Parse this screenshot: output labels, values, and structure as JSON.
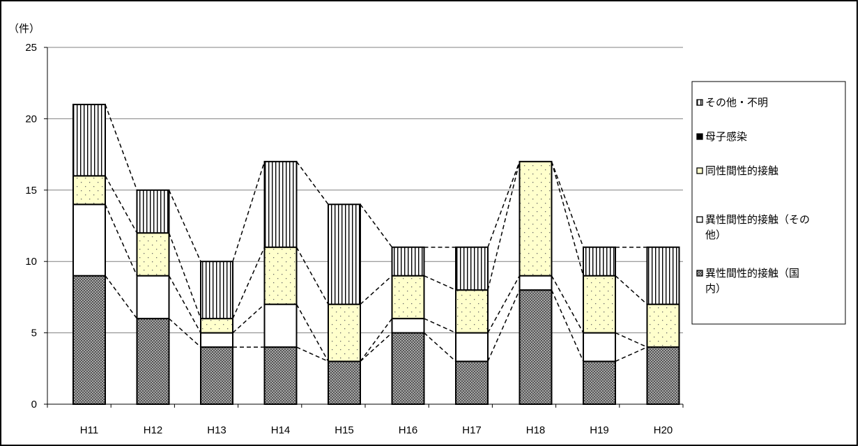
{
  "chart_data": {
    "type": "bar",
    "stacked": true,
    "ylabel": "（件）",
    "ylim": [
      0,
      25
    ],
    "yticks": [
      0,
      5,
      10,
      15,
      20,
      25
    ],
    "grid": true,
    "legend_position": "right",
    "categories": [
      "H11",
      "H12",
      "H13",
      "H14",
      "H15",
      "H16",
      "H17",
      "H18",
      "H19",
      "H20"
    ],
    "series": [
      {
        "name": "異性間性的接触（国内）",
        "pattern": "crosshatch",
        "values": [
          9,
          6,
          4,
          4,
          3,
          5,
          3,
          8,
          3,
          4
        ]
      },
      {
        "name": "異性間性的接触（その他）",
        "pattern": "blank",
        "values": [
          5,
          3,
          1,
          3,
          0,
          1,
          2,
          1,
          2,
          0
        ]
      },
      {
        "name": "同性間性的接触",
        "pattern": "dotted",
        "values": [
          2,
          3,
          1,
          4,
          4,
          3,
          3,
          8,
          4,
          3
        ]
      },
      {
        "name": "母子感染",
        "pattern": "solid",
        "values": [
          0,
          0,
          0,
          0,
          0,
          0,
          0,
          0,
          0,
          0
        ]
      },
      {
        "name": "その他・不明",
        "pattern": "vertical-lines",
        "values": [
          5,
          3,
          4,
          6,
          7,
          2,
          3,
          0,
          2,
          4
        ]
      }
    ],
    "legend": {
      "items": [
        {
          "series_index": 4,
          "lines": [
            "その他・不明"
          ]
        },
        {
          "series_index": 3,
          "lines": [
            "母子感染"
          ]
        },
        {
          "series_index": 2,
          "lines": [
            "同性間性的接触"
          ]
        },
        {
          "series_index": 1,
          "lines": [
            "異性間性的接触（その",
            "他）"
          ]
        },
        {
          "series_index": 0,
          "lines": [
            "異性間性的接触（国",
            "内）"
          ]
        }
      ]
    }
  }
}
